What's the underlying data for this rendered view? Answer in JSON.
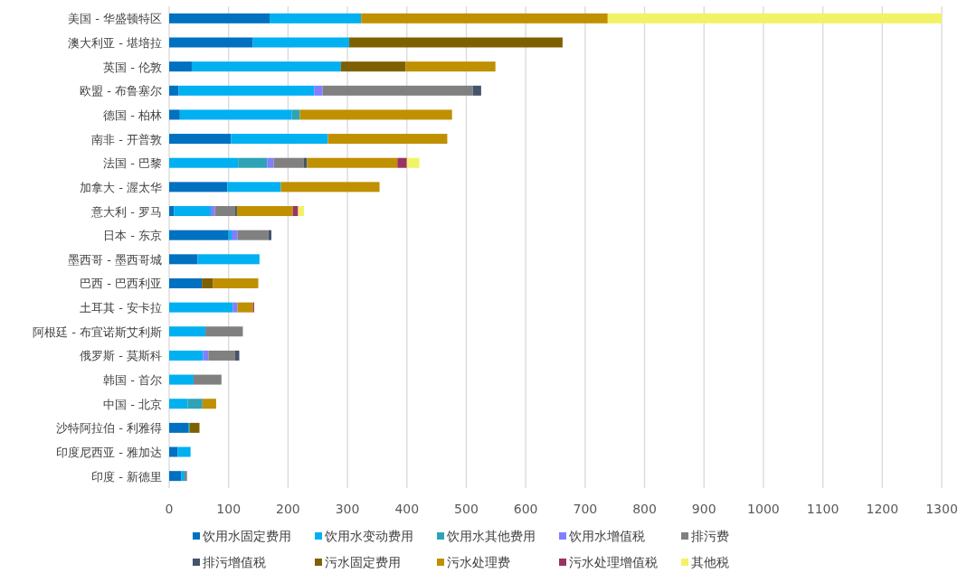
{
  "chart_data": {
    "type": "bar",
    "orientation": "horizontal",
    "stacked": true,
    "grid": "x",
    "legend": "bottom",
    "categories": [
      "美国 - 华盛顿特区",
      "澳大利亚 - 堪培拉",
      "英国 - 伦敦",
      "欧盟 - 布鲁塞尔",
      "德国 - 柏林",
      "南非 - 开普敦",
      "法国 - 巴黎",
      "加拿大 - 渥太华",
      "意大利 - 罗马",
      "日本 - 东京",
      "墨西哥 - 墨西哥城",
      "巴西 - 巴西利亚",
      "土耳其 - 安卡拉",
      "阿根廷 - 布宜诺斯艾利斯",
      "俄罗斯 - 莫斯科",
      "韩国 - 首尔",
      "中国 - 北京",
      "沙特阿拉伯 - 利雅得",
      "印度尼西亚 - 雅加达",
      "印度 - 新德里"
    ],
    "xlim": [
      0,
      1300
    ],
    "xticks": [
      0,
      100,
      200,
      300,
      400,
      500,
      600,
      700,
      800,
      900,
      1000,
      1100,
      1200,
      1300
    ],
    "series": [
      {
        "name": "饮用水固定费用",
        "color": "#0070c0",
        "values": [
          169,
          141,
          38,
          16,
          18,
          104,
          null,
          98,
          8,
          100,
          48,
          55,
          null,
          null,
          null,
          null,
          null,
          32,
          14,
          20
        ]
      },
      {
        "name": "饮用水变动费用",
        "color": "#00b0f0",
        "values": [
          154,
          162,
          251,
          228,
          188,
          163,
          116,
          90,
          62,
          5,
          104,
          null,
          107,
          61,
          57,
          41,
          31,
          2,
          22,
          6
        ]
      },
      {
        "name": "饮用水其他费用",
        "color": "#2ea3b5",
        "values": [
          null,
          null,
          null,
          null,
          14,
          null,
          49,
          null,
          null,
          null,
          null,
          null,
          null,
          null,
          null,
          null,
          25,
          null,
          null,
          null
        ]
      },
      {
        "name": "饮用水增值税",
        "color": "#7f7fff",
        "values": [
          null,
          null,
          null,
          14,
          null,
          null,
          11,
          null,
          7,
          10,
          null,
          null,
          8,
          null,
          9,
          null,
          null,
          null,
          null,
          null
        ]
      },
      {
        "name": "排污费",
        "color": "#808080",
        "values": [
          null,
          null,
          null,
          253,
          null,
          null,
          50,
          null,
          34,
          52,
          null,
          null,
          null,
          63,
          45,
          47,
          null,
          null,
          null,
          4
        ]
      },
      {
        "name": "排污增值税",
        "color": "#44546a",
        "values": [
          null,
          null,
          null,
          14,
          null,
          null,
          6,
          null,
          3,
          5,
          null,
          null,
          null,
          null,
          7,
          null,
          null,
          null,
          null,
          null
        ]
      },
      {
        "name": "污水固定费用",
        "color": "#7f6000",
        "values": [
          null,
          359,
          109,
          null,
          null,
          null,
          null,
          null,
          null,
          null,
          null,
          19,
          null,
          null,
          null,
          null,
          null,
          17,
          null,
          null
        ]
      },
      {
        "name": "污水处理费",
        "color": "#bf9000",
        "values": [
          415,
          null,
          151,
          null,
          256,
          201,
          152,
          166,
          94,
          null,
          null,
          76,
          26,
          null,
          null,
          null,
          23,
          null,
          null,
          null
        ]
      },
      {
        "name": "污水处理增值税",
        "color": "#993366",
        "values": [
          null,
          null,
          null,
          null,
          null,
          null,
          16,
          null,
          9,
          null,
          null,
          null,
          2,
          null,
          null,
          null,
          null,
          null,
          null,
          null
        ]
      },
      {
        "name": "其他税",
        "color": "#f2f266",
        "values": [
          562,
          null,
          null,
          null,
          null,
          null,
          21,
          null,
          10,
          null,
          null,
          null,
          null,
          null,
          null,
          null,
          null,
          null,
          null,
          null
        ]
      }
    ]
  }
}
